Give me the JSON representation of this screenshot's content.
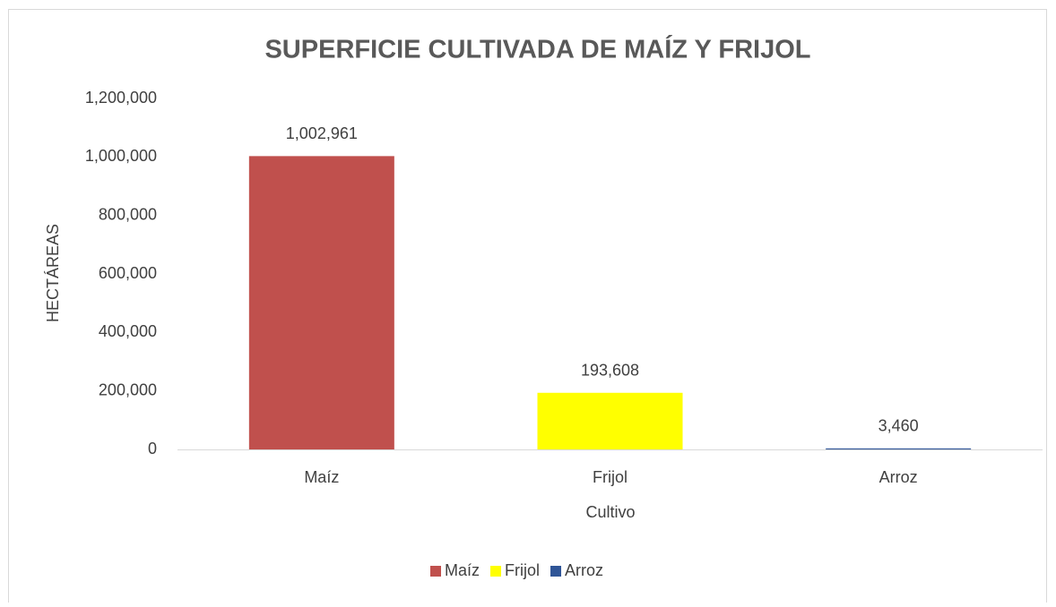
{
  "chart_data": {
    "type": "bar",
    "title": "SUPERFICIE CULTIVADA DE MAÍZ Y FRIJOL",
    "y_label": "HECTÁREAS",
    "x_label": "Cultivo",
    "categories": [
      "Maíz",
      "Frijol",
      "Arroz"
    ],
    "series": [
      {
        "name": "Maíz",
        "color": "#c0504d",
        "values": [
          1002961,
          null,
          null
        ],
        "value_labels": [
          "1,002,961",
          null,
          null
        ]
      },
      {
        "name": "Frijol",
        "color": "#ffff00",
        "values": [
          null,
          193608,
          null
        ],
        "value_labels": [
          null,
          "193,608",
          null
        ]
      },
      {
        "name": "Arroz",
        "color": "#2f5597",
        "values": [
          null,
          null,
          3460
        ],
        "value_labels": [
          null,
          null,
          "3,460"
        ]
      }
    ],
    "ylim": [
      0,
      1200000
    ],
    "yticks": [
      0,
      {
        "value": 200000,
        "label": "200,000"
      },
      {
        "value": 400000,
        "label": "400,000"
      },
      {
        "value": 600000,
        "label": "600,000"
      },
      {
        "value": 800000,
        "label": "800,000"
      },
      {
        "value": 1000000,
        "label": "1,000,000"
      },
      {
        "value": 1200000,
        "label": "1,200,000"
      }
    ],
    "grid": false,
    "legend": "bottom"
  }
}
